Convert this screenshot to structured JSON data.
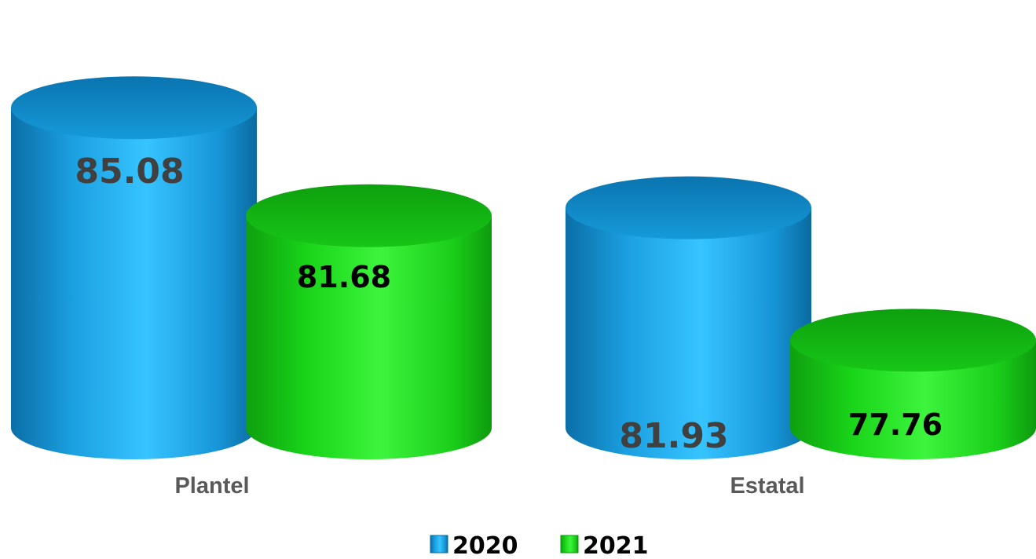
{
  "chart_data": {
    "type": "bar",
    "categories": [
      "Plantel",
      "Estatal"
    ],
    "series": [
      {
        "name": "2020",
        "values": [
          85.08,
          81.93
        ],
        "color": "#1aa6e6",
        "label_color": "#404040"
      },
      {
        "name": "2021",
        "values": [
          81.68,
          77.76
        ],
        "color": "#19e619",
        "label_color": "#000000"
      }
    ],
    "value_labels": [
      "85.08",
      "81.68",
      "81.93",
      "77.76"
    ],
    "ylim": [
      75,
      86
    ],
    "grid": false,
    "legend_position": "bottom-center",
    "style": "3d-cylinder"
  }
}
